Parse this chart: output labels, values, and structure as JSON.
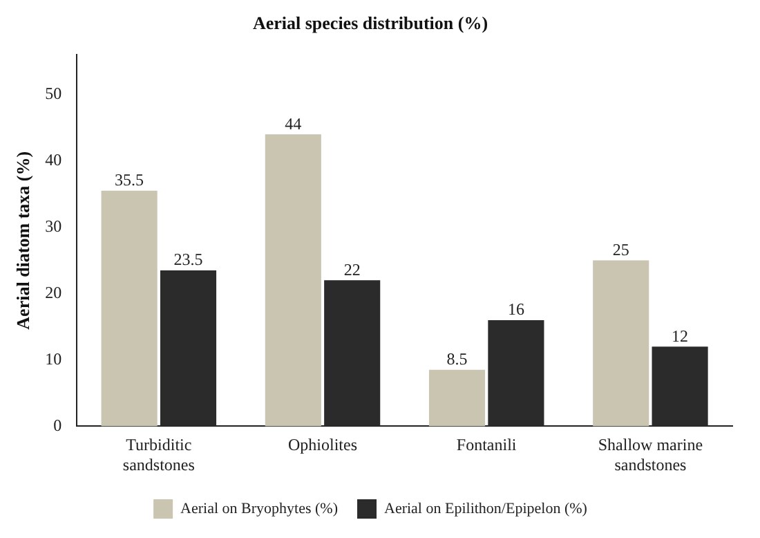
{
  "chart_data": {
    "type": "bar",
    "title": "Aerial species distribution (%)",
    "ylabel": "Aerial diatom taxa (%)",
    "categories": [
      "Turbiditic sandstones",
      "Ophiolites",
      "Fontanili",
      "Shallow marine sandstones"
    ],
    "series": [
      {
        "name": "Aerial on Bryophytes (%)",
        "color": "#c9c5b1",
        "values": [
          35.5,
          44,
          8.5,
          25
        ]
      },
      {
        "name": "Aerial on Epilithon/Epipelon (%)",
        "color": "#2b2b2b",
        "values": [
          23.5,
          22,
          16,
          12
        ]
      }
    ],
    "ylim": [
      0,
      56
    ],
    "yticks": [
      0,
      10,
      20,
      30,
      40,
      50
    ],
    "grid": false,
    "legend": "bottom",
    "data_labels": true
  }
}
